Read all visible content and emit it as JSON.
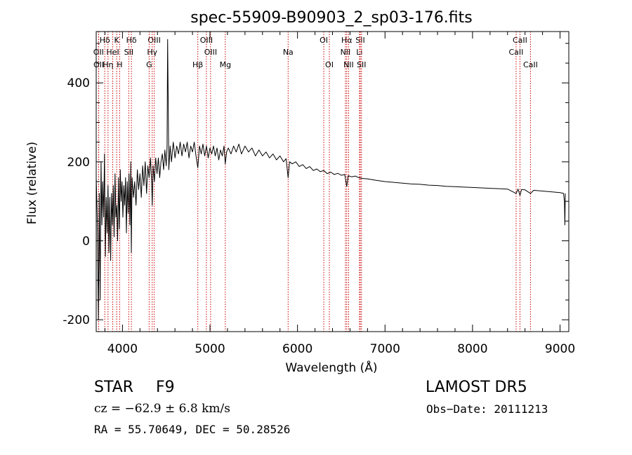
{
  "chart_data": {
    "type": "line",
    "title": "spec-55909-B90903_2_sp03-176.fits",
    "xlabel": "Wavelength (Å)",
    "ylabel": "Flux (relative)",
    "xlim": [
      3700,
      9100
    ],
    "ylim": [
      -230,
      530
    ],
    "xticks": [
      4000,
      5000,
      6000,
      7000,
      8000,
      9000
    ],
    "yticks": [
      -200,
      0,
      200,
      400
    ],
    "grid": false,
    "line_color": "#000000",
    "marker_color": "#cc0000",
    "series": [
      {
        "points": [
          [
            3700,
            160
          ],
          [
            3712,
            60
          ],
          [
            3725,
            -200
          ],
          [
            3735,
            120
          ],
          [
            3745,
            -150
          ],
          [
            3755,
            200
          ],
          [
            3765,
            40
          ],
          [
            3775,
            150
          ],
          [
            3785,
            60
          ],
          [
            3795,
            220
          ],
          [
            3805,
            -40
          ],
          [
            3815,
            110
          ],
          [
            3825,
            20
          ],
          [
            3835,
            140
          ],
          [
            3845,
            -30
          ],
          [
            3855,
            110
          ],
          [
            3865,
            -50
          ],
          [
            3875,
            120
          ],
          [
            3885,
            40
          ],
          [
            3895,
            140
          ],
          [
            3905,
            10
          ],
          [
            3915,
            170
          ],
          [
            3925,
            60
          ],
          [
            3935,
            90
          ],
          [
            3945,
            0
          ],
          [
            3955,
            160
          ],
          [
            3965,
            30
          ],
          [
            3975,
            180
          ],
          [
            3985,
            100
          ],
          [
            3995,
            150
          ],
          [
            4005,
            60
          ],
          [
            4015,
            140
          ],
          [
            4025,
            90
          ],
          [
            4035,
            160
          ],
          [
            4045,
            20
          ],
          [
            4055,
            150
          ],
          [
            4065,
            70
          ],
          [
            4075,
            170
          ],
          [
            4085,
            40
          ],
          [
            4095,
            200
          ],
          [
            4101,
            -30
          ],
          [
            4110,
            160
          ],
          [
            4125,
            110
          ],
          [
            4140,
            150
          ],
          [
            4155,
            90
          ],
          [
            4170,
            180
          ],
          [
            4185,
            130
          ],
          [
            4200,
            170
          ],
          [
            4215,
            110
          ],
          [
            4230,
            190
          ],
          [
            4245,
            140
          ],
          [
            4260,
            200
          ],
          [
            4275,
            120
          ],
          [
            4290,
            190
          ],
          [
            4305,
            160
          ],
          [
            4320,
            210
          ],
          [
            4335,
            140
          ],
          [
            4340,
            90
          ],
          [
            4350,
            190
          ],
          [
            4365,
            150
          ],
          [
            4380,
            210
          ],
          [
            4395,
            170
          ],
          [
            4410,
            210
          ],
          [
            4425,
            160
          ],
          [
            4440,
            200
          ],
          [
            4455,
            220
          ],
          [
            4470,
            180
          ],
          [
            4485,
            230
          ],
          [
            4500,
            190
          ],
          [
            4510,
            240
          ],
          [
            4516,
            510
          ],
          [
            4522,
            380
          ],
          [
            4530,
            180
          ],
          [
            4545,
            240
          ],
          [
            4560,
            200
          ],
          [
            4580,
            250
          ],
          [
            4600,
            210
          ],
          [
            4620,
            240
          ],
          [
            4640,
            220
          ],
          [
            4660,
            250
          ],
          [
            4680,
            215
          ],
          [
            4700,
            245
          ],
          [
            4720,
            225
          ],
          [
            4740,
            250
          ],
          [
            4760,
            210
          ],
          [
            4780,
            240
          ],
          [
            4800,
            225
          ],
          [
            4820,
            250
          ],
          [
            4840,
            215
          ],
          [
            4861,
            185
          ],
          [
            4880,
            240
          ],
          [
            4900,
            220
          ],
          [
            4920,
            245
          ],
          [
            4940,
            215
          ],
          [
            4960,
            240
          ],
          [
            4980,
            210
          ],
          [
            5000,
            235
          ],
          [
            5020,
            220
          ],
          [
            5040,
            240
          ],
          [
            5060,
            215
          ],
          [
            5080,
            235
          ],
          [
            5100,
            205
          ],
          [
            5120,
            230
          ],
          [
            5140,
            215
          ],
          [
            5160,
            240
          ],
          [
            5175,
            195
          ],
          [
            5190,
            225
          ],
          [
            5210,
            235
          ],
          [
            5240,
            220
          ],
          [
            5270,
            240
          ],
          [
            5300,
            225
          ],
          [
            5330,
            245
          ],
          [
            5360,
            220
          ],
          [
            5400,
            240
          ],
          [
            5440,
            225
          ],
          [
            5480,
            235
          ],
          [
            5520,
            215
          ],
          [
            5560,
            230
          ],
          [
            5600,
            215
          ],
          [
            5640,
            225
          ],
          [
            5680,
            210
          ],
          [
            5720,
            220
          ],
          [
            5760,
            205
          ],
          [
            5800,
            215
          ],
          [
            5840,
            200
          ],
          [
            5870,
            208
          ],
          [
            5893,
            160
          ],
          [
            5910,
            200
          ],
          [
            5940,
            195
          ],
          [
            5980,
            200
          ],
          [
            6020,
            188
          ],
          [
            6060,
            193
          ],
          [
            6100,
            183
          ],
          [
            6140,
            188
          ],
          [
            6180,
            178
          ],
          [
            6220,
            182
          ],
          [
            6260,
            175
          ],
          [
            6300,
            178
          ],
          [
            6340,
            170
          ],
          [
            6380,
            174
          ],
          [
            6420,
            168
          ],
          [
            6460,
            171
          ],
          [
            6500,
            166
          ],
          [
            6540,
            168
          ],
          [
            6563,
            138
          ],
          [
            6580,
            165
          ],
          [
            6620,
            162
          ],
          [
            6660,
            164
          ],
          [
            6700,
            160
          ],
          [
            6740,
            158
          ],
          [
            6800,
            157
          ],
          [
            6900,
            153
          ],
          [
            7000,
            150
          ],
          [
            7100,
            148
          ],
          [
            7200,
            146
          ],
          [
            7300,
            144
          ],
          [
            7400,
            143
          ],
          [
            7500,
            141
          ],
          [
            7600,
            140
          ],
          [
            7700,
            138
          ],
          [
            7800,
            137
          ],
          [
            7900,
            136
          ],
          [
            8000,
            135
          ],
          [
            8100,
            134
          ],
          [
            8200,
            133
          ],
          [
            8300,
            132
          ],
          [
            8400,
            131
          ],
          [
            8498,
            120
          ],
          [
            8520,
            131
          ],
          [
            8542,
            115
          ],
          [
            8560,
            130
          ],
          [
            8600,
            129
          ],
          [
            8662,
            120
          ],
          [
            8700,
            128
          ],
          [
            8800,
            126
          ],
          [
            8900,
            124
          ],
          [
            9000,
            122
          ],
          [
            9040,
            120
          ],
          [
            9050,
            100
          ],
          [
            9055,
            40
          ],
          [
            9060,
            120
          ]
        ]
      }
    ],
    "line_markers": [
      {
        "label": "Hδ",
        "wavelength": 3798,
        "row": 0
      },
      {
        "label": "K",
        "wavelength": 3934,
        "row": 0
      },
      {
        "label": "Hδ",
        "wavelength": 4102,
        "row": 0
      },
      {
        "label": "OIII",
        "wavelength": 4363,
        "row": 0
      },
      {
        "label": "OIII",
        "wavelength": 4959,
        "row": 0
      },
      {
        "label": "OI",
        "wavelength": 6300,
        "row": 0
      },
      {
        "label": "Hα",
        "wavelength": 6563,
        "row": 0
      },
      {
        "label": "SII",
        "wavelength": 6717,
        "row": 0
      },
      {
        "label": "CaII",
        "wavelength": 8542,
        "row": 0
      },
      {
        "label": "OII",
        "wavelength": 3727,
        "row": 1
      },
      {
        "label": "HeI",
        "wavelength": 3889,
        "row": 1
      },
      {
        "label": "SII",
        "wavelength": 4072,
        "row": 1
      },
      {
        "label": "Hγ",
        "wavelength": 4340,
        "row": 1
      },
      {
        "label": "OIII",
        "wavelength": 5007,
        "row": 1
      },
      {
        "label": "Na",
        "wavelength": 5893,
        "row": 1
      },
      {
        "label": "NII",
        "wavelength": 6548,
        "row": 1
      },
      {
        "label": "Li",
        "wavelength": 6708,
        "row": 1
      },
      {
        "label": "CaII",
        "wavelength": 8498,
        "row": 1
      },
      {
        "label": "OII",
        "wavelength": 3729,
        "row": 2
      },
      {
        "label": "Hη",
        "wavelength": 3835,
        "row": 2
      },
      {
        "label": "H",
        "wavelength": 3968,
        "row": 2
      },
      {
        "label": "G",
        "wavelength": 4305,
        "row": 2
      },
      {
        "label": "Hβ",
        "wavelength": 4861,
        "row": 2
      },
      {
        "label": "Mg",
        "wavelength": 5175,
        "row": 2
      },
      {
        "label": "OI",
        "wavelength": 6364,
        "row": 2
      },
      {
        "label": "NII",
        "wavelength": 6584,
        "row": 2
      },
      {
        "label": "SII",
        "wavelength": 6731,
        "row": 2
      },
      {
        "label": "CaII",
        "wavelength": 8662,
        "row": 2
      }
    ]
  },
  "info": {
    "class": "STAR",
    "subclass": "F9",
    "release": "LAMOST DR5",
    "cz": "cz = −62.9 ± 6.8 km/s",
    "obs_date": "Obs−Date: 20111213",
    "coords": "RA =  55.70649, DEC =  50.28526"
  }
}
